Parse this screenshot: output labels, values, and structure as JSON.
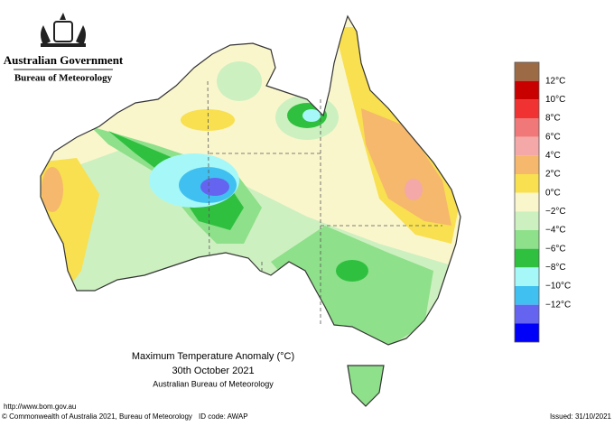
{
  "header": {
    "government": "Australian Government",
    "agency": "Bureau of Meteorology"
  },
  "title": {
    "line1": "Maximum Temperature Anomaly (°C)",
    "line2": "30th October 2021",
    "line3": "Australian Bureau of Meteorology"
  },
  "legend": {
    "colors": [
      "#9c6b45",
      "#c80000",
      "#f03232",
      "#f07878",
      "#f4a8a8",
      "#f6b86c",
      "#f8e050",
      "#faf6cc",
      "#cdf0c0",
      "#8ee08a",
      "#30c040",
      "#a6f8f8",
      "#40c0f0",
      "#6464f0",
      "#0000f8"
    ],
    "labels": [
      "12°C",
      "10°C",
      "8°C",
      "6°C",
      "4°C",
      "2°C",
      "0°C",
      "−2°C",
      "−4°C",
      "−6°C",
      "−8°C",
      "−10°C",
      "−12°C"
    ]
  },
  "footer": {
    "url": "http://www.bom.gov.au",
    "copyright": "© Commonwealth of Australia 2021, Bureau of Meteorology",
    "id_code": "ID code: AWAP",
    "issued": "Issued: 31/10/2021"
  }
}
